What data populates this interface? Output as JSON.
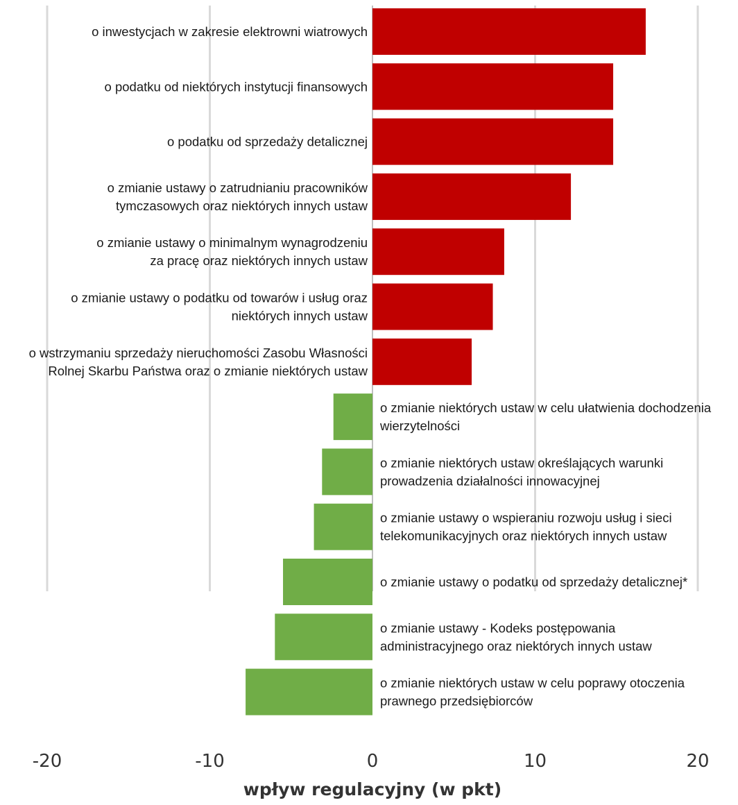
{
  "chart_data": {
    "type": "bar",
    "orientation": "horizontal",
    "xlabel": "wpływ regulacyjny (w pkt)",
    "xlim": [
      -20,
      20
    ],
    "xticks": [
      -20,
      -10,
      0,
      10,
      20
    ],
    "xtick_labels": [
      "-20",
      "-10",
      "0",
      "10",
      "20"
    ],
    "grid": true,
    "colors": {
      "positive": "#c00000",
      "negative": "#70ad47",
      "grid": "#d9d9d9",
      "zero_line": "#bfbfbf"
    },
    "bars": [
      {
        "lines": [
          "o inwestycjach w zakresie elektrowni wiatrowych"
        ],
        "value": 16.8
      },
      {
        "lines": [
          "o podatku od niektórych instytucji finansowych"
        ],
        "value": 14.8
      },
      {
        "lines": [
          "o podatku od sprzedaży detalicznej"
        ],
        "value": 14.8
      },
      {
        "lines": [
          "o zmianie ustawy o zatrudnianiu pracowników",
          "tymczasowych oraz niektórych innych ustaw"
        ],
        "value": 12.2
      },
      {
        "lines": [
          "o zmianie ustawy o minimalnym wynagrodzeniu",
          "za pracę oraz niektórych innych ustaw"
        ],
        "value": 8.1
      },
      {
        "lines": [
          "o zmianie ustawy o podatku od towarów i usług oraz",
          "niektórych innych ustaw"
        ],
        "value": 7.4
      },
      {
        "lines": [
          "o wstrzymaniu sprzedaży nieruchomości Zasobu Własności",
          "Rolnej Skarbu Państwa oraz o zmianie niektórych ustaw"
        ],
        "value": 6.1
      },
      {
        "lines": [
          "o zmianie niektórych ustaw w celu ułatwienia dochodzenia",
          "wierzytelności"
        ],
        "value": -2.4
      },
      {
        "lines": [
          "o zmianie niektórych ustaw określających warunki",
          "prowadzenia działalności innowacyjnej"
        ],
        "value": -3.1
      },
      {
        "lines": [
          "o zmianie ustawy o wspieraniu rozwoju usług i sieci",
          "telekomunikacyjnych oraz niektórych innych ustaw"
        ],
        "value": -3.6
      },
      {
        "lines": [
          "o zmianie ustawy o podatku od sprzedaży detalicznej*"
        ],
        "value": -5.5
      },
      {
        "lines": [
          "o zmianie ustawy - Kodeks postępowania",
          "administracyjnego oraz niektórych innych ustaw"
        ],
        "value": -6.0
      },
      {
        "lines": [
          "o zmianie niektórych ustaw w celu poprawy otoczenia",
          "prawnego przedsiębiorców"
        ],
        "value": -7.8
      }
    ]
  }
}
